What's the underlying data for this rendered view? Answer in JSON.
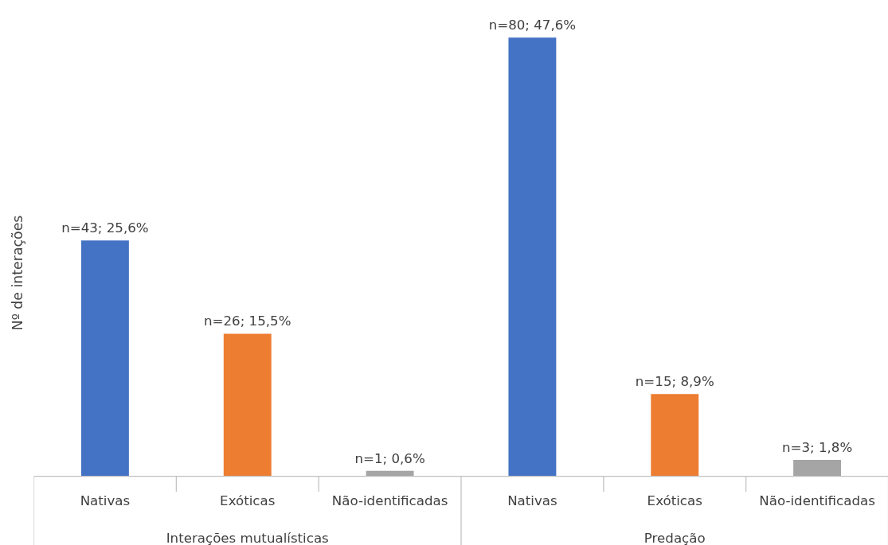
{
  "chart_data": {
    "type": "bar",
    "ylabel": "Nº de interações",
    "categories": [
      "Nativas",
      "Exóticas",
      "Não-identificadas",
      "Nativas",
      "Exóticas",
      "Não-identificadas"
    ],
    "values": [
      43,
      26,
      1,
      80,
      15,
      3
    ],
    "colors": [
      "#4472c4",
      "#ed7d31",
      "#a5a5a5",
      "#4472c4",
      "#ed7d31",
      "#a5a5a5"
    ],
    "value_labels": [
      "n=43; 25,6%",
      "n=26; 15,5%",
      "n=1; 0,6%",
      "n=80; 47,6%",
      "n=15; 8,9%",
      "n=3; 1,8%"
    ],
    "annotations": [
      "Interações mutualísticas",
      "Predação"
    ],
    "grid": false
  }
}
